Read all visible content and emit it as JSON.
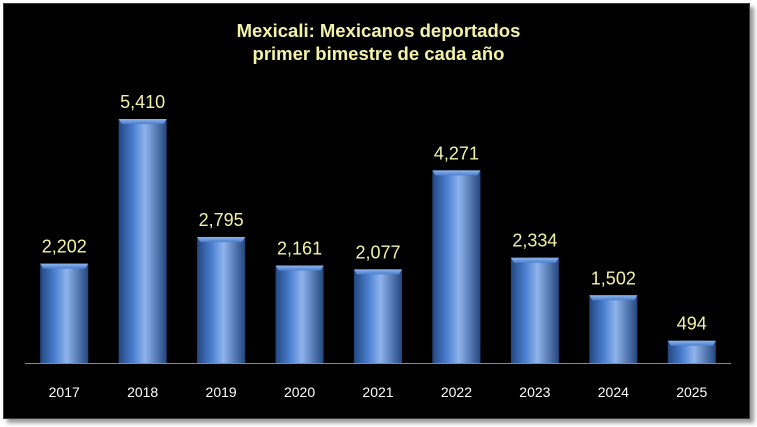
{
  "chart_data": {
    "type": "bar",
    "title_line1": "Mexicali: Mexicanos deportados",
    "title_line2": "primer bimestre de cada año",
    "categories": [
      "2017",
      "2018",
      "2019",
      "2020",
      "2021",
      "2022",
      "2023",
      "2024",
      "2025"
    ],
    "values": [
      2202,
      5410,
      2795,
      2161,
      2077,
      4271,
      2334,
      1502,
      494
    ],
    "value_labels": [
      "2,202",
      "5,410",
      "2,795",
      "2,161",
      "2,077",
      "4,271",
      "2,334",
      "1,502",
      "494"
    ],
    "xlabel": "",
    "ylabel": "",
    "ylim": [
      0,
      5410
    ],
    "grid": false,
    "legend": "none",
    "colors": {
      "background": "#000000",
      "bar": "#4a7fd0",
      "bar_light": "#8fb4ec",
      "bar_dark": "#23467f",
      "value_label": "#f2f2a8",
      "tick_label": "#ffffff",
      "axis": "#8a8a8a"
    }
  }
}
